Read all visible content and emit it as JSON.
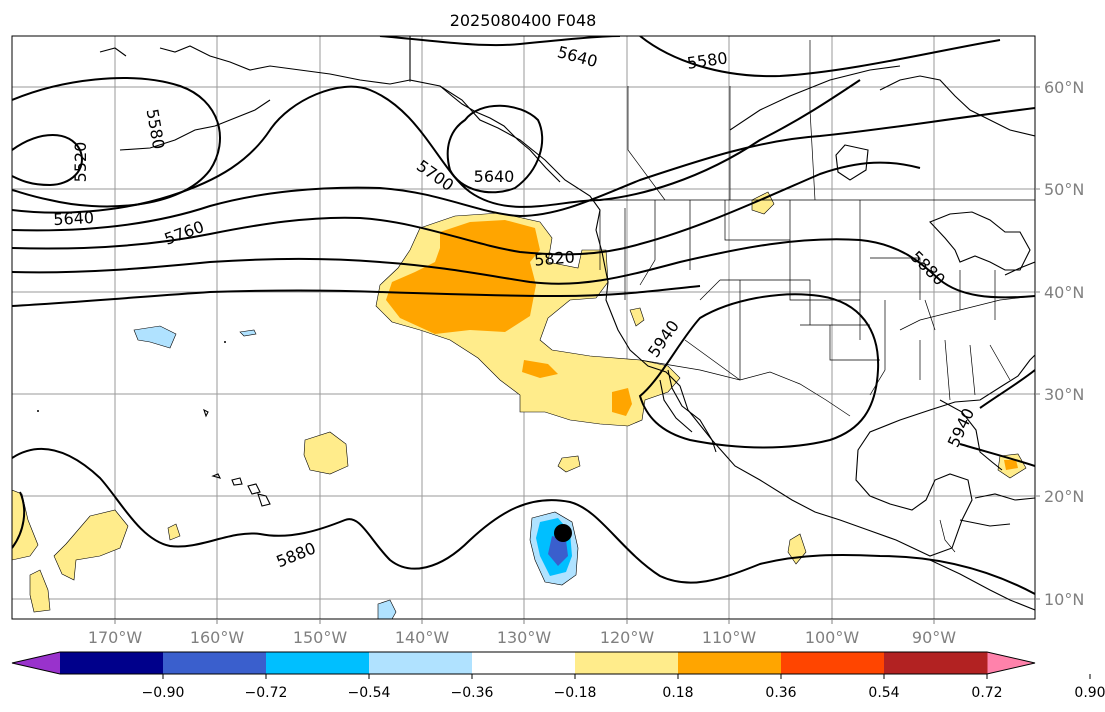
{
  "title": "2025080400 F048",
  "lat_labels": [
    "60°N",
    "50°N",
    "40°N",
    "30°N",
    "20°N",
    "10°N"
  ],
  "lon_labels": [
    "170°W",
    "160°W",
    "150°W",
    "140°W",
    "130°W",
    "120°W",
    "110°W",
    "100°W",
    "90°W"
  ],
  "contour_labels": [
    "5640",
    "5580",
    "5580",
    "5520",
    "5700",
    "5640",
    "5640",
    "5760",
    "5820",
    "5880",
    "5940",
    "5940",
    "5880"
  ],
  "colorbar": {
    "ticks": [
      "−0.90",
      "−0.72",
      "−0.54",
      "−0.36",
      "−0.18",
      "0.18",
      "0.36",
      "0.54",
      "0.72",
      "0.90"
    ],
    "colors": [
      "#9932cc",
      "#00008b",
      "#3a5fcd",
      "#00bfff",
      "#b0e2ff",
      "#ffffff",
      "#ffec8b",
      "#ffa500",
      "#ff4500",
      "#b22222",
      "#ff82ab"
    ]
  },
  "colors": {
    "pos_light": "#ffec8b",
    "pos_mid": "#ffa500",
    "neg_light": "#b0e2ff",
    "neg_mid": "#00bfff",
    "neg_dark": "#3a5fcd",
    "marker": "#000000"
  }
}
